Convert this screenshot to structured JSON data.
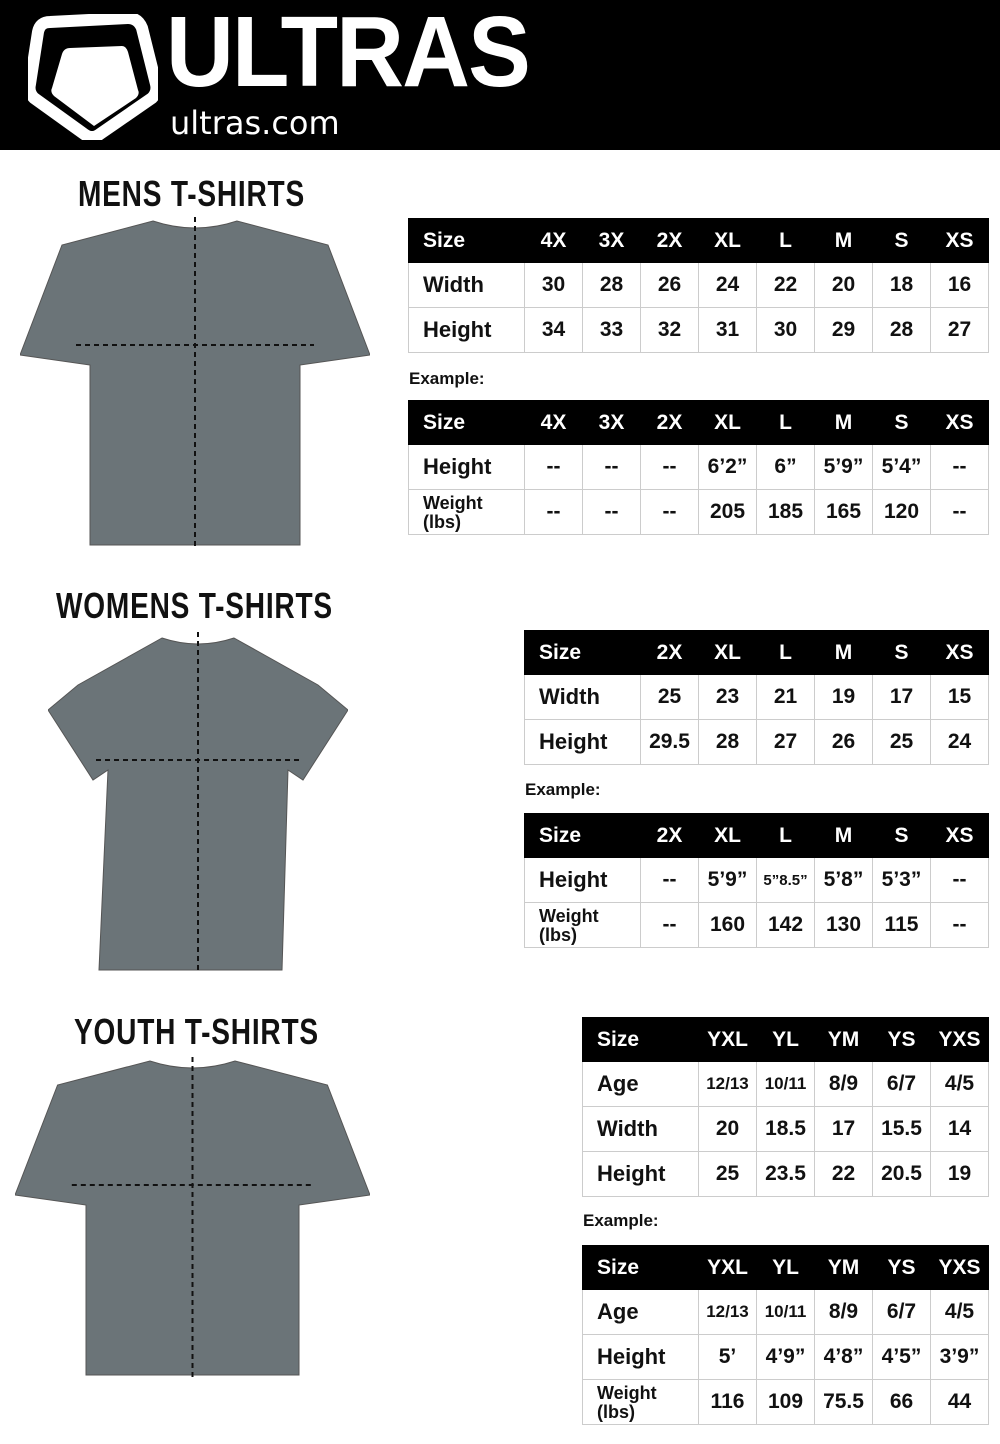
{
  "header": {
    "brand": "ULTRAS",
    "site": "ultras.com",
    "background": "#000000"
  },
  "sections": [
    {
      "title": "MENS T-SHIRTS",
      "example_label": "Example:",
      "sizes": {
        "header": [
          "Size",
          "4X",
          "3X",
          "2X",
          "XL",
          "L",
          "M",
          "S",
          "XS"
        ],
        "rows": [
          [
            "Width",
            "30",
            "28",
            "26",
            "24",
            "22",
            "20",
            "18",
            "16"
          ],
          [
            "Height",
            "34",
            "33",
            "32",
            "31",
            "30",
            "29",
            "28",
            "27"
          ]
        ]
      },
      "example": {
        "header": [
          "Size",
          "4X",
          "3X",
          "2X",
          "XL",
          "L",
          "M",
          "S",
          "XS"
        ],
        "rows": [
          [
            "Height",
            "--",
            "--",
            "--",
            "6’2”",
            "6”",
            "5’9”",
            "5’4”",
            "--"
          ],
          [
            "Weight (lbs)",
            "--",
            "--",
            "--",
            "205",
            "185",
            "165",
            "120",
            "--"
          ]
        ]
      }
    },
    {
      "title": "WOMENS T-SHIRTS",
      "example_label": "Example:",
      "sizes": {
        "header": [
          "Size",
          "2X",
          "XL",
          "L",
          "M",
          "S",
          "XS"
        ],
        "rows": [
          [
            "Width",
            "25",
            "23",
            "21",
            "19",
            "17",
            "15"
          ],
          [
            "Height",
            "29.5",
            "28",
            "27",
            "26",
            "25",
            "24"
          ]
        ]
      },
      "example": {
        "header": [
          "Size",
          "2X",
          "XL",
          "L",
          "M",
          "S",
          "XS"
        ],
        "rows": [
          [
            "Height",
            "--",
            "5’9”",
            "5”8.5”",
            "5’8”",
            "5’3”",
            "--"
          ],
          [
            "Weight (lbs)",
            "--",
            "160",
            "142",
            "130",
            "115",
            "--"
          ]
        ]
      }
    },
    {
      "title": "YOUTH T-SHIRTS",
      "example_label": "Example:",
      "sizes": {
        "header": [
          "Size",
          "YXL",
          "YL",
          "YM",
          "YS",
          "YXS"
        ],
        "rows": [
          [
            "Age",
            "12/13",
            "10/11",
            "8/9",
            "6/7",
            "4/5"
          ],
          [
            "Width",
            "20",
            "18.5",
            "17",
            "15.5",
            "14"
          ],
          [
            "Height",
            "25",
            "23.5",
            "22",
            "20.5",
            "19"
          ]
        ]
      },
      "example": {
        "header": [
          "Size",
          "YXL",
          "YL",
          "YM",
          "YS",
          "YXS"
        ],
        "rows": [
          [
            "Age",
            "12/13",
            "10/11",
            "8/9",
            "6/7",
            "4/5"
          ],
          [
            "Height",
            "5’",
            "4’9”",
            "4’8”",
            "4’5”",
            "3’9”"
          ],
          [
            "Weight (lbs)",
            "116",
            "109",
            "75.5",
            "66",
            "44"
          ]
        ]
      }
    }
  ]
}
